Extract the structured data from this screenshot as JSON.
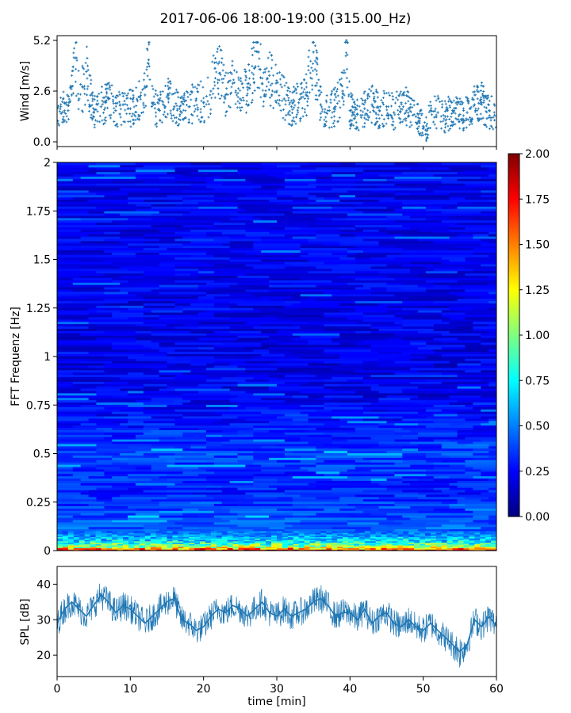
{
  "title": "2017-06-06 18:00-19:00 (315.00_Hz)",
  "chart_data": [
    {
      "type": "scatter",
      "panel": "wind",
      "ylabel": "Wind [m/s]",
      "xlim": [
        0,
        60
      ],
      "ylim": [
        0,
        5.2
      ],
      "yticks": [
        "0.0",
        "2.6",
        "5.2"
      ],
      "marker_color": "#1f77b4",
      "marker": "plus",
      "x": [
        0.5,
        1,
        1.5,
        2,
        2.5,
        3,
        3.5,
        4,
        5,
        6,
        7,
        8,
        9,
        10,
        11,
        12,
        12.5,
        13,
        14,
        15,
        16,
        17,
        18,
        19,
        20,
        21,
        22,
        23,
        24,
        25,
        26,
        27,
        27.5,
        28,
        29,
        30,
        31,
        32,
        33,
        34,
        35,
        36,
        37,
        38,
        39,
        39.5,
        40,
        41,
        42,
        43,
        44,
        45,
        46,
        47,
        48,
        49,
        50,
        50.5,
        51,
        52,
        53,
        54,
        55,
        56,
        57,
        58,
        59,
        60
      ],
      "y": [
        1.8,
        2.0,
        1.6,
        2.4,
        4.3,
        2.2,
        2.8,
        3.6,
        1.5,
        1.8,
        2.2,
        1.6,
        1.9,
        1.7,
        2.1,
        2.4,
        4.2,
        2.0,
        1.6,
        2.3,
        1.8,
        1.5,
        1.8,
        2.2,
        2.0,
        2.6,
        4.0,
        2.4,
        3.0,
        2.2,
        2.8,
        3.8,
        4.6,
        3.0,
        3.4,
        2.6,
        2.2,
        1.8,
        2.0,
        2.4,
        4.6,
        1.9,
        1.6,
        1.8,
        2.6,
        5.2,
        1.6,
        1.4,
        1.7,
        1.9,
        1.6,
        1.8,
        1.5,
        2.0,
        1.7,
        1.3,
        0.8,
        0.6,
        1.6,
        1.5,
        1.3,
        1.6,
        1.4,
        1.5,
        1.9,
        2.0,
        1.6,
        1.3
      ]
    },
    {
      "type": "heatmap",
      "panel": "spectrogram",
      "ylabel": "FFT Frequenz [Hz]",
      "xlim": [
        0,
        60
      ],
      "ylim": [
        0,
        2
      ],
      "yticks": [
        "0",
        "0.25",
        "0.5",
        "0.75",
        "1",
        "1.25",
        "1.5",
        "1.75",
        "2"
      ],
      "colormap": "jet",
      "colorbar": {
        "range": [
          0,
          2
        ],
        "ticks": [
          "0.00",
          "0.25",
          "0.50",
          "0.75",
          "1.00",
          "1.25",
          "1.50",
          "1.75",
          "2.00"
        ]
      },
      "band_freqs_hz": [
        0.0,
        0.02,
        0.05,
        0.1,
        0.3,
        0.5,
        0.6,
        0.8,
        1.0,
        1.5,
        2.0
      ],
      "band_levels": [
        1.9,
        1.1,
        0.7,
        0.45,
        0.3,
        0.38,
        0.3,
        0.22,
        0.2,
        0.22,
        0.22
      ]
    },
    {
      "type": "line",
      "panel": "spl",
      "ylabel": "SPL [dB]",
      "xlabel": "time [min]",
      "xlim": [
        0,
        60
      ],
      "ylim": [
        14,
        45
      ],
      "yticks": [
        "20",
        "30",
        "40"
      ],
      "xticks": [
        "0",
        "10",
        "20",
        "30",
        "40",
        "50",
        "60"
      ],
      "line_color": "#1f77b4",
      "x": [
        0,
        1,
        2,
        3,
        4,
        5,
        6,
        7,
        8,
        9,
        10,
        11,
        12,
        13,
        14,
        15,
        16,
        17,
        18,
        19,
        20,
        21,
        22,
        23,
        24,
        25,
        26,
        27,
        28,
        29,
        30,
        31,
        32,
        33,
        34,
        35,
        36,
        37,
        38,
        39,
        40,
        41,
        42,
        43,
        44,
        45,
        46,
        47,
        48,
        49,
        50,
        51,
        52,
        53,
        54,
        55,
        56,
        57,
        58,
        59,
        60
      ],
      "y": [
        29,
        33,
        35,
        33,
        31,
        34,
        37,
        35,
        32,
        34,
        33,
        31,
        29,
        31,
        33,
        35,
        36,
        30,
        29,
        27,
        28,
        31,
        33,
        32,
        34,
        33,
        31,
        33,
        35,
        32,
        31,
        33,
        31,
        32,
        33,
        35,
        36,
        34,
        31,
        32,
        32,
        30,
        33,
        29,
        31,
        32,
        29,
        28,
        30,
        28,
        27,
        29,
        27,
        25,
        23,
        21,
        23,
        30,
        28,
        31,
        28
      ],
      "y_spread": [
        4,
        4,
        4,
        4,
        4,
        4,
        4,
        4,
        4,
        4,
        4,
        4,
        4,
        4,
        4,
        4,
        4,
        4,
        4,
        4,
        4,
        4,
        4,
        4,
        4,
        4,
        4,
        4,
        4,
        4,
        4,
        4,
        4,
        4,
        4,
        4,
        4,
        4,
        4,
        4,
        4,
        4,
        4,
        4,
        4,
        4,
        4,
        4,
        4,
        4,
        4,
        4,
        4,
        4,
        4,
        5,
        4,
        4,
        4,
        4,
        4
      ]
    }
  ]
}
